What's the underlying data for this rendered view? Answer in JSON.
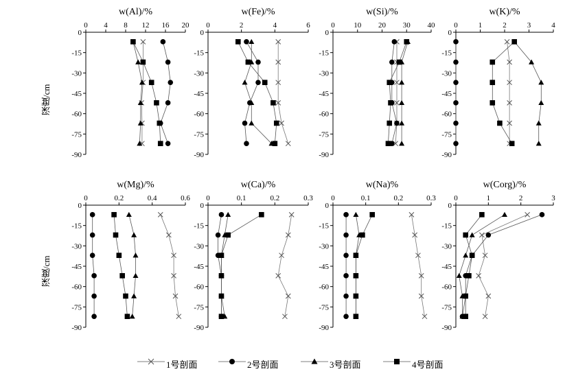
{
  "y_axis_label": "深度/cm",
  "legend": [
    "1号剖面",
    "2号剖面",
    "3号剖面",
    "4号剖面"
  ],
  "chart_data": [
    {
      "type": "line",
      "title": "w(Al)/%",
      "xlim": [
        0,
        20
      ],
      "x_ticks": [
        0,
        4,
        8,
        12,
        16,
        20
      ],
      "ylim": [
        -90,
        0
      ],
      "y_ticks": [
        0,
        -15,
        -30,
        -45,
        -60,
        -75,
        -90
      ],
      "depths": [
        -7,
        -22,
        -37,
        -52,
        -67,
        -82
      ],
      "series": [
        {
          "name": "1号剖面",
          "values": [
            11.5,
            11.5,
            11.5,
            11.2,
            11.3,
            11.3
          ]
        },
        {
          "name": "2号剖面",
          "values": [
            15.5,
            16.5,
            17,
            16.5,
            15.0,
            16.5
          ]
        },
        {
          "name": "3号剖面",
          "values": [
            9.5,
            10.5,
            11.3,
            11.0,
            11.0,
            10.8
          ]
        },
        {
          "name": "4号剖面",
          "values": [
            9.5,
            11.5,
            13.2,
            14.2,
            14.8,
            15.0
          ]
        }
      ]
    },
    {
      "type": "line",
      "title": "w(Fe)/%",
      "xlim": [
        0,
        6
      ],
      "x_ticks": [
        0,
        2,
        4,
        6
      ],
      "ylim": [
        -90,
        0
      ],
      "y_ticks": [
        0,
        -15,
        -30,
        -45,
        -60,
        -75,
        -90
      ],
      "depths": [
        -7,
        -22,
        -37,
        -52,
        -67,
        -82
      ],
      "series": [
        {
          "name": "1号剖面",
          "values": [
            4.2,
            4.2,
            4.2,
            4.2,
            4.4,
            4.8
          ]
        },
        {
          "name": "2号剖面",
          "values": [
            2.3,
            3.0,
            3.0,
            2.5,
            2.2,
            2.3
          ]
        },
        {
          "name": "3号剖面",
          "values": [
            2.6,
            2.6,
            2.2,
            2.6,
            2.6,
            3.8
          ]
        },
        {
          "name": "4号剖面",
          "values": [
            1.8,
            2.4,
            3.4,
            3.9,
            4.1,
            4.0
          ]
        }
      ]
    },
    {
      "type": "line",
      "title": "w(Si)/%",
      "xlim": [
        0,
        40
      ],
      "x_ticks": [
        0,
        10,
        20,
        30,
        40
      ],
      "ylim": [
        -90,
        0
      ],
      "y_ticks": [
        0,
        -15,
        -30,
        -45,
        -60,
        -75,
        -90
      ],
      "depths": [
        -7,
        -22,
        -37,
        -52,
        -67,
        -82
      ],
      "series": [
        {
          "name": "1号剖面",
          "values": [
            26,
            26,
            26,
            26,
            26,
            25.5
          ]
        },
        {
          "name": "2号剖面",
          "values": [
            25,
            24,
            24,
            24,
            26,
            24
          ]
        },
        {
          "name": "3号剖面",
          "values": [
            30.5,
            28,
            28,
            28,
            28,
            28
          ]
        },
        {
          "name": "4号剖面",
          "values": [
            30,
            27,
            23,
            23.5,
            23,
            22.5
          ]
        }
      ]
    },
    {
      "type": "line",
      "title": "w(K)/%",
      "xlim": [
        0,
        4
      ],
      "x_ticks": [
        0,
        1,
        2,
        3,
        4
      ],
      "ylim": [
        -90,
        0
      ],
      "y_ticks": [
        0,
        -15,
        -30,
        -45,
        -60,
        -75,
        -90
      ],
      "depths": [
        -7,
        -22,
        -37,
        -52,
        -67,
        -82
      ],
      "series": [
        {
          "name": "1号剖面",
          "values": [
            2.1,
            2.2,
            2.2,
            2.2,
            2.2,
            2.2
          ]
        },
        {
          "name": "2号剖面",
          "values": [
            0,
            0,
            0,
            0,
            0,
            0
          ]
        },
        {
          "name": "3号剖面",
          "values": [
            2.4,
            3.1,
            3.5,
            3.5,
            3.4,
            3.4
          ]
        },
        {
          "name": "4号剖面",
          "values": [
            2.4,
            1.5,
            1.5,
            1.5,
            1.8,
            2.3
          ]
        }
      ]
    },
    {
      "type": "line",
      "title": "w(Mg)/%",
      "xlim": [
        0,
        0.6
      ],
      "x_ticks": [
        0,
        0.2,
        0.4,
        0.6
      ],
      "ylim": [
        -90,
        0
      ],
      "y_ticks": [
        0,
        -15,
        -30,
        -45,
        -60,
        -75,
        -90
      ],
      "depths": [
        -7,
        -22,
        -37,
        -52,
        -67,
        -82
      ],
      "series": [
        {
          "name": "1号剖面",
          "values": [
            0.45,
            0.5,
            0.53,
            0.53,
            0.54,
            0.56
          ]
        },
        {
          "name": "2号剖面",
          "values": [
            0.04,
            0.04,
            0.04,
            0.05,
            0.05,
            0.05
          ]
        },
        {
          "name": "3号剖面",
          "values": [
            0.26,
            0.29,
            0.3,
            0.3,
            0.29,
            0.28
          ]
        },
        {
          "name": "4号剖面",
          "values": [
            0.17,
            0.18,
            0.2,
            0.22,
            0.24,
            0.25
          ]
        }
      ]
    },
    {
      "type": "line",
      "title": "w(Ca)/%",
      "xlim": [
        0,
        0.3
      ],
      "x_ticks": [
        0,
        0.1,
        0.2,
        0.3
      ],
      "ylim": [
        -90,
        0
      ],
      "y_ticks": [
        0,
        -15,
        -30,
        -45,
        -60,
        -75,
        -90
      ],
      "depths": [
        -7,
        -22,
        -37,
        -52,
        -67,
        -82
      ],
      "series": [
        {
          "name": "1号剖面",
          "values": [
            0.25,
            0.24,
            0.22,
            0.21,
            0.24,
            0.23
          ]
        },
        {
          "name": "2号剖面",
          "values": [
            0.04,
            0.03,
            0.03,
            0.04,
            0.04,
            0.04
          ]
        },
        {
          "name": "3号剖面",
          "values": [
            0.06,
            0.05,
            0.04,
            0.04,
            0.04,
            0.05
          ]
        },
        {
          "name": "4号剖面",
          "values": [
            0.16,
            0.06,
            0.04,
            0.04,
            0.04,
            0.04
          ]
        }
      ]
    },
    {
      "type": "line",
      "title": "w(Na)%",
      "xlim": [
        0,
        0.3
      ],
      "x_ticks": [
        0,
        0.1,
        0.2,
        0.3
      ],
      "ylim": [
        -90,
        0
      ],
      "y_ticks": [
        0,
        -15,
        -30,
        -45,
        -60,
        -75,
        -90
      ],
      "depths": [
        -7,
        -22,
        -37,
        -52,
        -67,
        -82
      ],
      "series": [
        {
          "name": "1号剖面",
          "values": [
            0.24,
            0.25,
            0.26,
            0.27,
            0.27,
            0.28
          ]
        },
        {
          "name": "2号剖面",
          "values": [
            0.04,
            0.04,
            0.04,
            0.04,
            0.04,
            0.04
          ]
        },
        {
          "name": "3号剖面",
          "values": [
            0.07,
            0.08,
            0.07,
            0.07,
            0.07,
            0.07
          ]
        },
        {
          "name": "4号剖面",
          "values": [
            0.12,
            0.09,
            0.07,
            0.07,
            0.07,
            0.07
          ]
        }
      ]
    },
    {
      "type": "line",
      "title": "w(Corg)/%",
      "xlim": [
        0,
        3
      ],
      "x_ticks": [
        0,
        1,
        2,
        3
      ],
      "ylim": [
        -90,
        0
      ],
      "y_ticks": [
        0,
        -15,
        -30,
        -45,
        -60,
        -75,
        -90
      ],
      "depths": [
        -7,
        -22,
        -37,
        -52,
        -67,
        -82
      ],
      "series": [
        {
          "name": "1号剖面",
          "values": [
            2.2,
            0.8,
            0.9,
            0.7,
            1.0,
            0.9
          ]
        },
        {
          "name": "2号剖面",
          "values": [
            2.65,
            1.0,
            0.5,
            0.3,
            0.3,
            0.2
          ]
        },
        {
          "name": "3号剖面",
          "values": [
            1.5,
            0.5,
            0.3,
            0.1,
            0.2,
            0.2
          ]
        },
        {
          "name": "4号剖面",
          "values": [
            0.8,
            0.3,
            0.5,
            0.4,
            0.3,
            0.3
          ]
        }
      ]
    }
  ]
}
